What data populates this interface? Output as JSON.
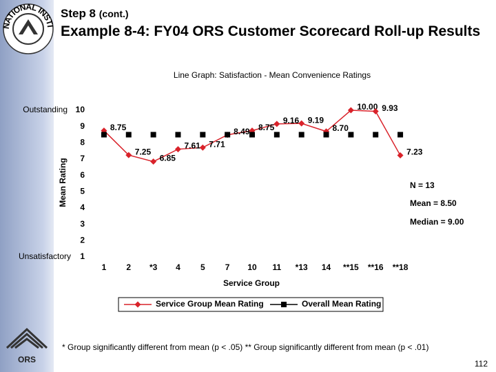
{
  "header": {
    "step": "Step 8",
    "step_suffix": "(cont.)",
    "title": "Example 8-4: FY04 ORS Customer Scorecard Roll-up Results"
  },
  "logos": {
    "nih": "NATIONAL INSTITUTES OF HEALTH",
    "ors": "ORS"
  },
  "chart_data": {
    "type": "line",
    "title": "Line Graph:  Satisfaction - Mean Convenience Ratings",
    "x_label": "Service Group",
    "y_label": "Mean Rating",
    "categories": [
      "1",
      "2",
      "*3",
      "4",
      "5",
      "7",
      "10",
      "11",
      "*13",
      "14",
      "**15",
      "**16",
      "**18"
    ],
    "series": [
      {
        "name": "Service Group Mean Rating",
        "color": "#d9222a",
        "marker": "diamond",
        "values": [
          8.75,
          7.25,
          6.85,
          7.61,
          7.71,
          8.49,
          8.75,
          9.16,
          9.19,
          8.7,
          10,
          9.93,
          7.23
        ],
        "value_labels": [
          "8.75",
          "7.25",
          "6.85",
          "7.61",
          "7.71",
          "8.49",
          "8.75",
          "9.16",
          "9.19",
          "8.70",
          "10.00",
          "9.93",
          "7.23"
        ]
      },
      {
        "name": "Overall Mean Rating",
        "color": "#000000",
        "marker": "square",
        "values": [
          8.5,
          8.5,
          8.5,
          8.5,
          8.5,
          8.5,
          8.5,
          8.5,
          8.5,
          8.5,
          8.5,
          8.5,
          8.5
        ]
      }
    ],
    "ylim": [
      1,
      10
    ],
    "yticks": [
      1,
      2,
      3,
      4,
      5,
      6,
      7,
      8,
      9,
      10
    ],
    "grid": false,
    "legend": "bottom",
    "annotations": [
      "Outstanding",
      "Unsatisfactory",
      "N = 13",
      "Mean = 8.50",
      "Median = 9.00"
    ]
  },
  "footnote": "* Group significantly different from mean (p < .05)  ** Group significantly different from mean (p < .01)",
  "page_number": "112"
}
